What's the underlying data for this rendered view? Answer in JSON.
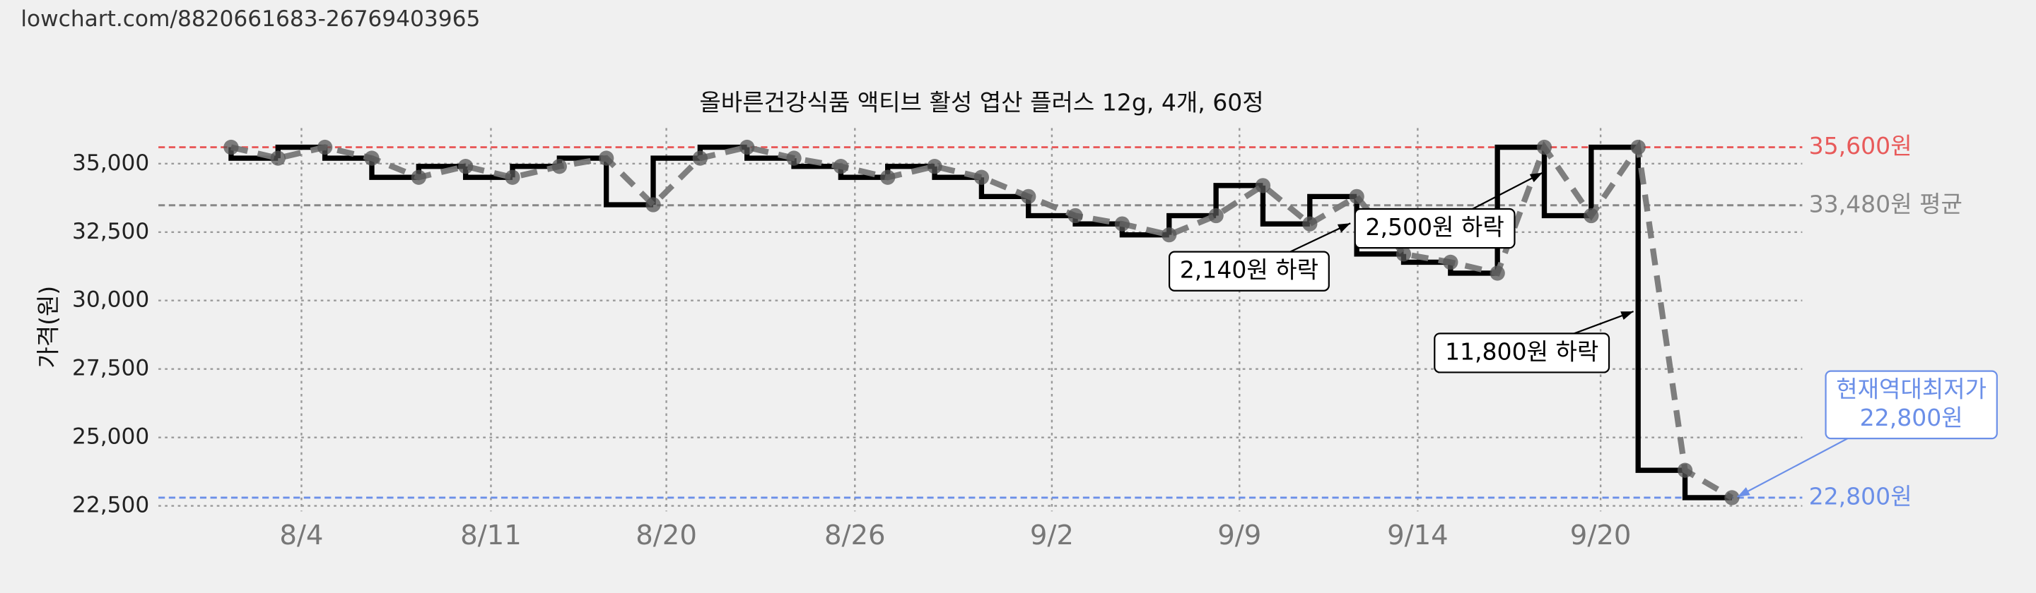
{
  "header": {
    "url": "lowchart.com/8820661683-26769403965"
  },
  "chart_data": {
    "type": "line",
    "step": "pre",
    "title": "올바른건강식품 액티브 활성 엽산 플러스 12g, 4개, 60정",
    "y_label": "가격(원)",
    "x": [
      0,
      1,
      2,
      3,
      4,
      5,
      6,
      7,
      8,
      9,
      10,
      11,
      12,
      13,
      14,
      15,
      16,
      17,
      18,
      19,
      20,
      21,
      22,
      23,
      24,
      25,
      26,
      27,
      28,
      29,
      30,
      31,
      32
    ],
    "xlim": [
      -1.55,
      33.5
    ],
    "xticks": [
      {
        "value": 1.5,
        "label": "8/4"
      },
      {
        "value": 5.54,
        "label": "8/11"
      },
      {
        "value": 9.28,
        "label": "8/20"
      },
      {
        "value": 13.3,
        "label": "8/26"
      },
      {
        "value": 17.5,
        "label": "9/2"
      },
      {
        "value": 21.5,
        "label": "9/9"
      },
      {
        "value": 25.3,
        "label": "9/14"
      },
      {
        "value": 29.2,
        "label": "9/20"
      }
    ],
    "ylim": [
      22300,
      36300
    ],
    "yticks": [
      {
        "value": 22500,
        "label": "22,500"
      },
      {
        "value": 25000,
        "label": "25,000"
      },
      {
        "value": 27500,
        "label": "27,500"
      },
      {
        "value": 30000,
        "label": "30,000"
      },
      {
        "value": 32500,
        "label": "32,500"
      },
      {
        "value": 35000,
        "label": "35,000"
      }
    ],
    "grid": true,
    "series": [
      {
        "color": "#000000",
        "trend_color": "#777777",
        "values": [
          35600,
          35200,
          35600,
          35200,
          34500,
          34900,
          34500,
          34900,
          35200,
          33500,
          35200,
          35600,
          35200,
          34900,
          34500,
          34900,
          34500,
          33800,
          33100,
          32800,
          32400,
          33100,
          34200,
          32800,
          33800,
          31700,
          31400,
          31000,
          35600,
          33100,
          35600,
          23800,
          22800
        ]
      }
    ],
    "reference_lines": [
      {
        "value": 35600,
        "label": "35,600원",
        "color": "#e85a5a"
      },
      {
        "value": 33480,
        "label": "33,480원 평균",
        "color": "#888888"
      },
      {
        "value": 22800,
        "label": "22,800원",
        "color": "#6b8fe8"
      }
    ],
    "annotations": [
      {
        "text": [
          "2,140원 하락"
        ]
      },
      {
        "text": [
          "2,500원 하락"
        ]
      },
      {
        "text": [
          "11,800원 하락"
        ]
      },
      {
        "text": [
          "현재역대최저가",
          "22,800원"
        ],
        "color": "#6b8fe8"
      }
    ]
  }
}
